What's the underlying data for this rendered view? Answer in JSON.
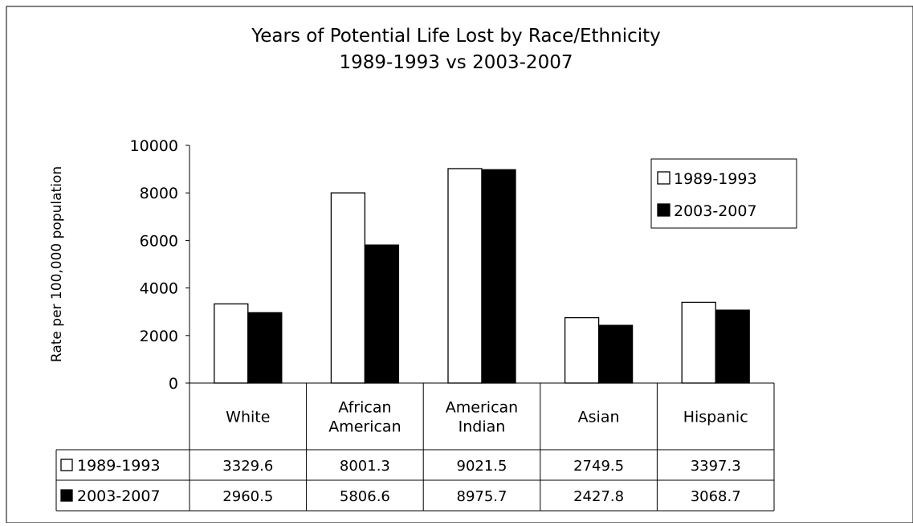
{
  "chart_data": {
    "type": "bar",
    "title": [
      "Years of Potential Life Lost by Race/Ethnicity",
      "1989-1993 vs 2003-2007"
    ],
    "xlabel": "",
    "ylabel": "Rate per 100,000 population",
    "ylim": [
      0,
      10000
    ],
    "yticks": [
      "0",
      "2000",
      "4000",
      "6000",
      "8000",
      "10000"
    ],
    "ytick_values": [
      0,
      2000,
      4000,
      6000,
      8000,
      10000
    ],
    "categories": [
      [
        "White"
      ],
      [
        "African",
        "American"
      ],
      [
        "American",
        "Indian"
      ],
      [
        "Asian"
      ],
      [
        "Hispanic"
      ]
    ],
    "series": [
      {
        "name": "1989-1993",
        "color": "#ffffff",
        "values": [
          3329.6,
          8001.3,
          9021.5,
          2749.5,
          3397.3
        ],
        "value_labels": [
          "3329.6",
          "8001.3",
          "9021.5",
          "2749.5",
          "3397.3"
        ]
      },
      {
        "name": "2003-2007",
        "color": "#000000",
        "values": [
          2960.5,
          5806.6,
          8975.7,
          2427.8,
          3068.7
        ],
        "value_labels": [
          "2960.5",
          "5806.6",
          "8975.7",
          "2427.8",
          "3068.7"
        ]
      }
    ],
    "legend_position": "top-right",
    "grid": false,
    "data_table": true
  }
}
